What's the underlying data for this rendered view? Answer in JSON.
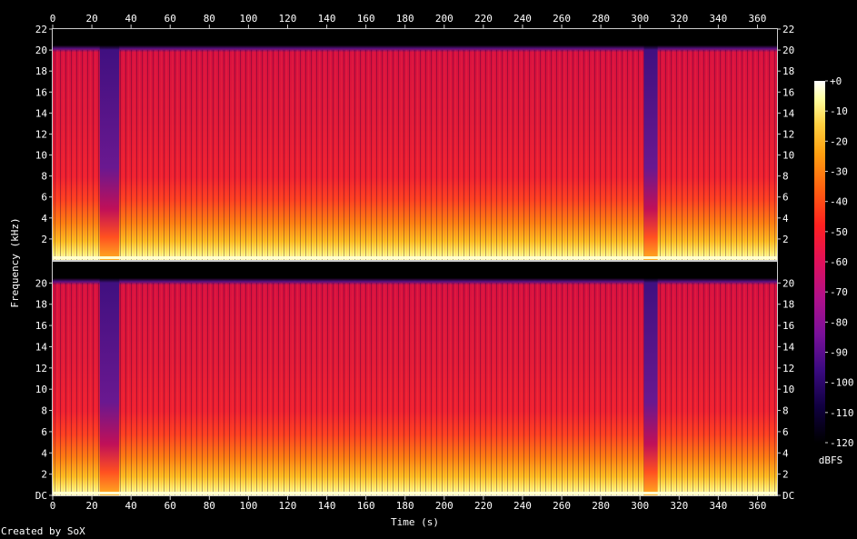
{
  "chart_data": {
    "type": "heatmap",
    "title": "",
    "xlabel": "Time (s)",
    "ylabel": "Frequency (kHz)",
    "xlim": [
      0,
      370
    ],
    "ylim": [
      0,
      22
    ],
    "x_ticks": [
      "0",
      "20",
      "40",
      "60",
      "80",
      "100",
      "120",
      "140",
      "160",
      "180",
      "200",
      "220",
      "240",
      "260",
      "280",
      "300",
      "320",
      "340",
      "360"
    ],
    "channels": [
      {
        "y_ticks": [
          "22",
          "20",
          "18",
          "16",
          "14",
          "12",
          "10",
          "8",
          "6",
          "4",
          "2"
        ]
      },
      {
        "y_ticks": [
          "20",
          "18",
          "16",
          "14",
          "12",
          "10",
          "8",
          "6",
          "4",
          "2",
          "DC"
        ]
      }
    ],
    "colorbar": {
      "label": "dBFS",
      "ticks": [
        "+0",
        "-10",
        "-20",
        "-30",
        "-40",
        "-50",
        "-60",
        "-70",
        "-80",
        "-90",
        "-100",
        "-110",
        "-120"
      ],
      "range": [
        -120,
        0
      ],
      "colors": [
        "#000000",
        "#100040",
        "#3a0a80",
        "#7a109a",
        "#b0108a",
        "#e0105a",
        "#ff2020",
        "#ff6010",
        "#ffa010",
        "#ffd040",
        "#ffffa0",
        "#ffffff"
      ]
    },
    "quiet_sections_s": [
      [
        24,
        34
      ],
      [
        302,
        309
      ]
    ],
    "cutoff_khz": 20.2
  },
  "footer": {
    "credit": "Created by SoX"
  }
}
